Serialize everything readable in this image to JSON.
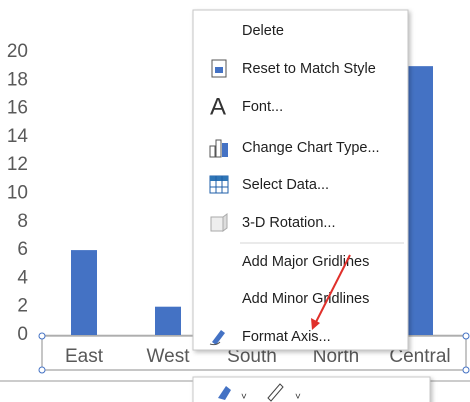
{
  "chart_data": {
    "type": "bar",
    "categories": [
      "East",
      "West",
      "South",
      "North",
      "Central"
    ],
    "values": [
      6,
      2,
      null,
      null,
      19
    ],
    "color": "#4472c4",
    "ylim": [
      0,
      20
    ],
    "yticks": [
      0,
      2,
      4,
      6,
      8,
      10,
      12,
      14,
      16,
      18,
      20
    ]
  },
  "context_menu": {
    "items": [
      {
        "label": "Delete",
        "enabled": true
      },
      {
        "label": "Reset to Match Style",
        "enabled": true
      },
      {
        "label": "Font...",
        "enabled": true
      },
      {
        "label": "Change Chart Type...",
        "enabled": true
      },
      {
        "label": "Select Data...",
        "enabled": true
      },
      {
        "label": "3-D Rotation...",
        "enabled": false
      },
      {
        "label": "Add Major Gridlines",
        "enabled": true
      },
      {
        "label": "Add Minor Gridlines",
        "enabled": true
      },
      {
        "label": "Format Axis...",
        "enabled": true
      }
    ]
  }
}
